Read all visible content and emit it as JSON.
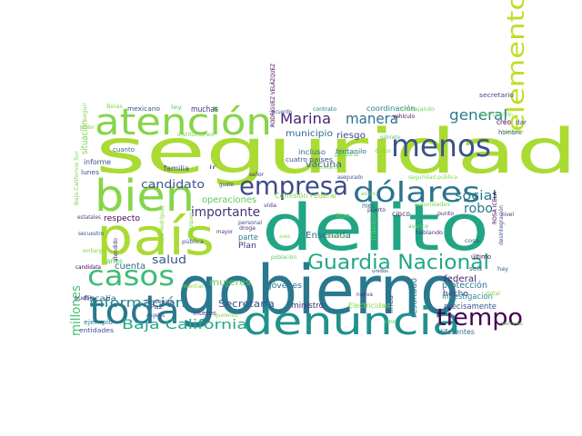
{
  "palette": {
    "lime": "#a0d732",
    "green": "#4cc26c",
    "teal": "#20a386",
    "blue": "#2a788e",
    "purple": "#46327e",
    "violet": "#440154"
  },
  "words": [
    {
      "text": "seguridad",
      "color": "#a9db33"
    },
    {
      "text": "delito",
      "color": "#21a585"
    },
    {
      "text": "gobierno",
      "color": "#2a788e"
    },
    {
      "text": "país",
      "color": "#a9db33"
    },
    {
      "text": "bien",
      "color": "#86d549"
    },
    {
      "text": "atención",
      "color": "#86d549"
    },
    {
      "text": "denuncia",
      "color": "#20928c"
    },
    {
      "text": "toda",
      "color": "#2a788e"
    },
    {
      "text": "menos",
      "color": "#3b528b"
    },
    {
      "text": "empresa",
      "color": "#3e4a89"
    },
    {
      "text": "dólares",
      "color": "#2c728e"
    },
    {
      "text": "elementos",
      "color": "#bddf26"
    },
    {
      "text": "Guardia Nacional",
      "color": "#22a884"
    },
    {
      "text": "casos",
      "color": "#3dbc74"
    },
    {
      "text": "tiempo",
      "color": "#440154"
    },
    {
      "text": "Marina",
      "color": "#482475"
    },
    {
      "text": "manera",
      "color": "#2d708e"
    },
    {
      "text": "general",
      "color": "#277f8e"
    },
    {
      "text": "Baja California",
      "color": "#22a884"
    },
    {
      "text": "información",
      "color": "#25858e"
    },
    {
      "text": "millones",
      "color": "#4ac16d"
    },
    {
      "text": "candidato",
      "color": "#3b528b"
    },
    {
      "text": "importante",
      "color": "#46327e"
    },
    {
      "text": "salud",
      "color": "#3b528b"
    },
    {
      "text": "social",
      "color": "#2a788e"
    },
    {
      "text": "robo",
      "color": "#2a788e"
    },
    {
      "text": "municipio",
      "color": "#31688e"
    },
    {
      "text": "riesgo",
      "color": "#3e4a89"
    },
    {
      "text": "vacuna",
      "color": "#365c8d"
    },
    {
      "text": "Ensenada",
      "color": "#31688e"
    },
    {
      "text": "Secretaría",
      "color": "#3b528b"
    },
    {
      "text": "resultado",
      "color": "#2a788e"
    },
    {
      "text": "mujeres",
      "color": "#5ec962"
    },
    {
      "text": "operaciones",
      "color": "#5ec962"
    },
    {
      "text": "protección",
      "color": "#2a788e"
    },
    {
      "text": "investigación",
      "color": "#21918c"
    },
    {
      "text": "precisamente",
      "color": "#3b528b"
    },
    {
      "text": "federal",
      "color": "#482475"
    },
    {
      "text": "hecho",
      "color": "#404688"
    },
    {
      "text": "cuenta",
      "color": "#31688e"
    },
    {
      "text": "respecto",
      "color": "#440154"
    },
    {
      "text": "situación",
      "color": "#7ad151"
    },
    {
      "text": "informe",
      "color": "#3b528b"
    },
    {
      "text": "familia",
      "color": "#3e4a89"
    },
    {
      "text": "ministro",
      "color": "#472d7b"
    },
    {
      "text": "jóvenes",
      "color": "#2c728e"
    },
    {
      "text": "Plan",
      "color": "#46327e"
    },
    {
      "text": "parte",
      "color": "#2a788e"
    },
    {
      "text": "línea",
      "color": "#3b528b"
    },
    {
      "text": "trabajo",
      "color": "#5ec962"
    },
    {
      "text": "muchas",
      "color": "#46327e"
    },
    {
      "text": "incluso",
      "color": "#31688e"
    },
    {
      "text": "países",
      "color": "#3b528b"
    },
    {
      "text": "coordinación",
      "color": "#26828e"
    },
    {
      "text": "fiscalía",
      "color": "#2c728e"
    },
    {
      "text": "ejemplo",
      "color": "#2a788e"
    },
    {
      "text": "entidades",
      "color": "#3b528b"
    },
    {
      "text": "diferentes",
      "color": "#2c728e"
    },
    {
      "text": "último",
      "color": "#440154"
    },
    {
      "text": "años",
      "color": "#5ec962"
    },
    {
      "text": "Electricidad",
      "color": "#86d549"
    },
    {
      "text": "cinco",
      "color": "#46327e"
    },
    {
      "text": "mes",
      "color": "#31688e"
    },
    {
      "text": "creo",
      "color": "#440154"
    },
    {
      "text": "dar",
      "color": "#3b528b"
    },
    {
      "text": "hombre",
      "color": "#3e4a89"
    },
    {
      "text": "secretario",
      "color": "#404688"
    },
    {
      "text": "San Quintín",
      "color": "#7ad151"
    },
    {
      "text": "cuanto",
      "color": "#31688e"
    },
    {
      "text": "lunes",
      "color": "#3b528b"
    },
    {
      "text": "estatales",
      "color": "#3e4a89"
    },
    {
      "text": "pueblo",
      "color": "#46327e"
    },
    {
      "text": "mexicano",
      "color": "#3b528b"
    },
    {
      "text": "Comisión Federal",
      "color": "#86d549"
    },
    {
      "text": "candidata",
      "color": "#440154"
    },
    {
      "text": "Paz",
      "color": "#3e4a89"
    },
    {
      "text": "Ángeles",
      "color": "#3b528b"
    },
    {
      "text": "tendencia",
      "color": "#3e4a89"
    },
    {
      "text": "interés",
      "color": "#46327e"
    },
    {
      "text": "seis",
      "color": "#31688e"
    },
    {
      "text": "hay",
      "color": "#3b528b"
    },
    {
      "text": "nueva",
      "color": "#46327e"
    },
    {
      "text": "sino",
      "color": "#5ec962"
    },
    {
      "text": "valores",
      "color": "#5ec962"
    },
    {
      "text": "unidos",
      "color": "#46327e"
    },
    {
      "text": "tipo",
      "color": "#5ec962"
    },
    {
      "text": "autoridades",
      "color": "#7ad151"
    },
    {
      "text": "hablando",
      "color": "#46327e"
    },
    {
      "text": "persona",
      "color": "#5ec962"
    },
    {
      "text": "asegurado",
      "color": "#3b528b"
    },
    {
      "text": "fentanilo",
      "color": "#31688e"
    },
    {
      "text": "cuatro",
      "color": "#3b528b"
    },
    {
      "text": "gabinete",
      "color": "#5ec962"
    },
    {
      "text": "vehículo",
      "color": "#440154"
    },
    {
      "text": "trabajando",
      "color": "#7ad151"
    },
    {
      "text": "contrato",
      "color": "#2a788e"
    },
    {
      "text": "acuerdo",
      "color": "#3b528b"
    },
    {
      "text": "ley",
      "color": "#5ec962"
    },
    {
      "text": "Beias",
      "color": "#86d549"
    },
    {
      "text": "seguir",
      "color": "#86d549"
    },
    {
      "text": "ir",
      "color": "#3e4a89"
    },
    {
      "text": "pública",
      "color": "#3b528b"
    },
    {
      "text": "mayor",
      "color": "#46327e"
    },
    {
      "text": "droga",
      "color": "#46327e"
    },
    {
      "text": "personal",
      "color": "#3b528b"
    },
    {
      "text": "vida",
      "color": "#46327e"
    },
    {
      "text": "puerto",
      "color": "#46327e"
    },
    {
      "text": "punto",
      "color": "#46327e"
    },
    {
      "text": "cosa",
      "color": "#3b528b"
    },
    {
      "text": "avance",
      "color": "#5ec962"
    },
    {
      "text": "secuestro",
      "color": "#3b528b"
    },
    {
      "text": "Baja California Sur",
      "color": "#7ad151"
    },
    {
      "text": "ROSA ICELA",
      "color": "#440154"
    },
    {
      "text": "RODRÍGUEZ VELÁZQUEZ",
      "color": "#440154"
    },
    {
      "text": "desintegración",
      "color": "#3b528b"
    },
    {
      "text": "Icela Rodríguez",
      "color": "#86d549"
    },
    {
      "text": "Velázquez",
      "color": "#86d549"
    },
    {
      "text": "hicieron",
      "color": "#86d549"
    },
    {
      "text": "seguridad pública",
      "color": "#86d549"
    },
    {
      "text": "poder",
      "color": "#86d549"
    },
    {
      "text": "mientras",
      "color": "#86d549"
    },
    {
      "text": "queremos",
      "color": "#86d549"
    },
    {
      "text": "total",
      "color": "#86d549"
    },
    {
      "text": "dichos",
      "color": "#86d549"
    },
    {
      "text": "secretaria",
      "color": "#86d549"
    },
    {
      "text": "servicio",
      "color": "#86d549"
    },
    {
      "text": "aves",
      "color": "#86d549"
    },
    {
      "text": "población",
      "color": "#5ec962"
    },
    {
      "text": "atendido",
      "color": "#46327e"
    },
    {
      "text": "gusto",
      "color": "#46327e"
    },
    {
      "text": "señor",
      "color": "#46327e"
    },
    {
      "text": "instituciones",
      "color": "#7ad151"
    },
    {
      "text": "nivel",
      "color": "#46327e"
    },
    {
      "text": "embargo",
      "color": "#86d549"
    },
    {
      "text": "aviso",
      "color": "#7ad151"
    }
  ]
}
